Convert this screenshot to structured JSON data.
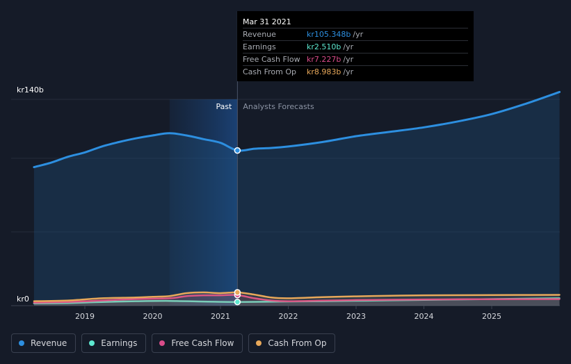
{
  "chart_data": {
    "type": "area",
    "y_axis": {
      "top_label": "kr140b",
      "bottom_label": "kr0",
      "ylim": [
        0,
        140
      ]
    },
    "x_ticks": [
      "2019",
      "2020",
      "2021",
      "2022",
      "2023",
      "2024",
      "2025"
    ],
    "x_range": [
      2018.25,
      2026.0
    ],
    "divider": {
      "x": 2021.25,
      "past_label": "Past",
      "forecast_label": "Analysts Forecasts"
    },
    "highlight_band": [
      2020.25,
      2021.25
    ],
    "series": [
      {
        "name": "Revenue",
        "color": "#2d8fe0",
        "unit": "kr",
        "points": [
          [
            2018.25,
            94
          ],
          [
            2018.5,
            97
          ],
          [
            2018.75,
            101
          ],
          [
            2019.0,
            104
          ],
          [
            2019.25,
            108
          ],
          [
            2019.5,
            111
          ],
          [
            2019.75,
            113.5
          ],
          [
            2020.0,
            115.5
          ],
          [
            2020.25,
            117
          ],
          [
            2020.5,
            115.5
          ],
          [
            2020.75,
            113
          ],
          [
            2021.0,
            110.5
          ],
          [
            2021.25,
            105.3
          ],
          [
            2021.5,
            106.5
          ],
          [
            2021.75,
            107
          ],
          [
            2022.0,
            108
          ],
          [
            2022.5,
            111
          ],
          [
            2023.0,
            115
          ],
          [
            2023.5,
            118
          ],
          [
            2024.0,
            121
          ],
          [
            2024.5,
            125
          ],
          [
            2025.0,
            130
          ],
          [
            2025.5,
            137
          ],
          [
            2026.0,
            145
          ]
        ]
      },
      {
        "name": "Earnings",
        "color": "#5ee8d0",
        "unit": "kr",
        "points": [
          [
            2018.25,
            1.5
          ],
          [
            2018.75,
            1.8
          ],
          [
            2019.25,
            2.5
          ],
          [
            2019.75,
            3.0
          ],
          [
            2020.25,
            3.2
          ],
          [
            2020.75,
            2.8
          ],
          [
            2021.25,
            2.5
          ],
          [
            2021.75,
            2.7
          ],
          [
            2022.5,
            3.0
          ],
          [
            2023.5,
            3.6
          ],
          [
            2024.5,
            4.2
          ],
          [
            2026.0,
            5.0
          ]
        ]
      },
      {
        "name": "Free Cash Flow",
        "color": "#d94c8a",
        "unit": "kr",
        "points": [
          [
            2018.25,
            2.0
          ],
          [
            2018.75,
            2.5
          ],
          [
            2019.25,
            3.5
          ],
          [
            2019.75,
            4.5
          ],
          [
            2020.25,
            5.0
          ],
          [
            2020.5,
            6.5
          ],
          [
            2020.75,
            7.0
          ],
          [
            2021.0,
            7.0
          ],
          [
            2021.25,
            7.2
          ],
          [
            2021.5,
            5.0
          ],
          [
            2021.75,
            3.5
          ],
          [
            2022.0,
            3.0
          ],
          [
            2022.5,
            3.4
          ],
          [
            2023.0,
            3.8
          ],
          [
            2023.5,
            4.0
          ],
          [
            2024.0,
            4.2
          ],
          [
            2025.0,
            4.4
          ],
          [
            2026.0,
            4.5
          ]
        ]
      },
      {
        "name": "Cash From Op",
        "color": "#e8a85a",
        "unit": "kr",
        "points": [
          [
            2018.25,
            3.0
          ],
          [
            2018.75,
            3.5
          ],
          [
            2019.25,
            5.0
          ],
          [
            2019.75,
            5.5
          ],
          [
            2020.0,
            6.0
          ],
          [
            2020.25,
            6.5
          ],
          [
            2020.5,
            8.5
          ],
          [
            2020.75,
            9.0
          ],
          [
            2021.0,
            8.5
          ],
          [
            2021.25,
            9.0
          ],
          [
            2021.5,
            7.5
          ],
          [
            2021.75,
            5.5
          ],
          [
            2022.0,
            5.0
          ],
          [
            2022.5,
            5.8
          ],
          [
            2023.0,
            6.3
          ],
          [
            2023.5,
            6.7
          ],
          [
            2024.0,
            7.0
          ],
          [
            2025.0,
            7.2
          ],
          [
            2026.0,
            7.3
          ]
        ]
      }
    ]
  },
  "tooltip": {
    "date": "Mar 31 2021",
    "unit": "/yr",
    "rows": [
      {
        "label": "Revenue",
        "value": "kr105.348b",
        "color": "#2d8fe0"
      },
      {
        "label": "Earnings",
        "value": "kr2.510b",
        "color": "#5ee8d0"
      },
      {
        "label": "Free Cash Flow",
        "value": "kr7.227b",
        "color": "#d94c8a"
      },
      {
        "label": "Cash From Op",
        "value": "kr8.983b",
        "color": "#e8a85a"
      }
    ]
  },
  "legend": [
    {
      "label": "Revenue",
      "color": "#2d8fe0"
    },
    {
      "label": "Earnings",
      "color": "#5ee8d0"
    },
    {
      "label": "Free Cash Flow",
      "color": "#d94c8a"
    },
    {
      "label": "Cash From Op",
      "color": "#e8a85a"
    }
  ]
}
